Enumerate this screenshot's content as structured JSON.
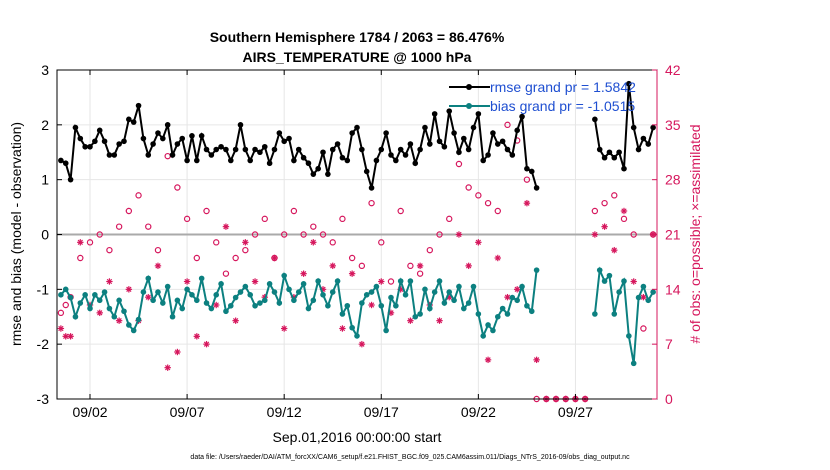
{
  "chart_data": {
    "type": "line",
    "title_line1": "Southern Hemisphere 1784 / 2063 = 86.476%",
    "title_line2": "AIRS_TEMPERATURE @ 1000 hPa",
    "xlabel": "Sep.01,2016 00:00:00 start",
    "ylabel_left": "rmse and bias (model - observation)",
    "ylabel_right": "# of obs: o=possible; ×=assimilated",
    "footnote": "data file: /Users/raeder/DAI/ATM_forcXX/CAM6_setup/f.e21.FHIST_BGC.f09_025.CAM6assim.011/Diags_NTrS_2016-09/obs_diag_output.nc",
    "xlim": [
      0.3,
      31.2
    ],
    "ylim_left": [
      -3,
      3
    ],
    "ylim_right": [
      0,
      42
    ],
    "x_tick_values": [
      2,
      7,
      12,
      17,
      22,
      27
    ],
    "x_tick_labels": [
      "09/02",
      "09/07",
      "09/12",
      "09/17",
      "09/22",
      "09/27"
    ],
    "y_left_ticks": [
      "-3",
      "-2",
      "-1",
      "0",
      "1",
      "2",
      "3"
    ],
    "y_right_ticks": [
      "0",
      "7",
      "14",
      "21",
      "28",
      "35",
      "42"
    ],
    "grid": true,
    "legend_position": "top-right",
    "colors": {
      "rmse": "#000000",
      "bias": "#0c8080",
      "obs": "#d6175d",
      "zero_line": "#aaaaaa",
      "legend_text": "#1f4fd1"
    },
    "series": [
      {
        "name": "rmse grand pr = 1.5842",
        "axis": "left",
        "color": "#000000",
        "x": [
          0.5,
          0.75,
          1.0,
          1.25,
          1.5,
          1.75,
          2.0,
          2.25,
          2.5,
          2.75,
          3.0,
          3.25,
          3.5,
          3.75,
          4.0,
          4.25,
          4.5,
          4.75,
          5.0,
          5.25,
          5.5,
          5.75,
          6.0,
          6.25,
          6.5,
          6.75,
          7.0,
          7.25,
          7.5,
          7.75,
          8.0,
          8.25,
          8.5,
          8.75,
          9.0,
          9.25,
          9.5,
          9.75,
          10.0,
          10.25,
          10.5,
          10.75,
          11.0,
          11.25,
          11.5,
          11.75,
          12.0,
          12.25,
          12.5,
          12.75,
          13.0,
          13.25,
          13.5,
          13.75,
          14.0,
          14.25,
          14.5,
          14.75,
          15.0,
          15.25,
          15.5,
          15.75,
          16.0,
          16.25,
          16.5,
          16.75,
          17.0,
          17.25,
          17.5,
          17.75,
          18.0,
          18.25,
          18.5,
          18.75,
          19.0,
          19.25,
          19.5,
          19.75,
          20.0,
          20.25,
          20.5,
          20.75,
          21.0,
          21.25,
          21.5,
          21.75,
          22.0,
          22.25,
          22.5,
          22.75,
          23.0,
          23.25,
          23.5,
          23.75,
          24.0,
          24.25,
          24.5,
          24.75,
          25.0,
          null,
          28.0,
          28.25,
          28.5,
          28.75,
          29.0,
          29.25,
          29.5,
          29.75,
          30.0,
          30.25,
          30.5,
          30.75,
          31.0
        ],
        "values": [
          1.35,
          1.3,
          1.0,
          1.95,
          1.75,
          1.6,
          1.6,
          1.7,
          1.9,
          1.7,
          1.45,
          1.45,
          1.65,
          1.7,
          2.1,
          2.05,
          2.35,
          1.75,
          1.45,
          1.65,
          1.85,
          1.75,
          2.0,
          1.45,
          1.65,
          1.75,
          1.35,
          1.8,
          1.35,
          1.8,
          1.55,
          1.45,
          1.55,
          1.6,
          1.55,
          1.35,
          1.55,
          2.0,
          1.55,
          1.35,
          1.55,
          1.5,
          1.6,
          1.3,
          1.55,
          1.85,
          1.7,
          1.75,
          1.35,
          1.55,
          1.4,
          1.3,
          1.1,
          1.2,
          1.5,
          1.1,
          1.55,
          1.65,
          1.4,
          1.35,
          1.85,
          1.95,
          1.55,
          1.15,
          0.85,
          1.35,
          1.55,
          1.85,
          1.45,
          1.35,
          1.55,
          1.45,
          1.65,
          1.3,
          1.55,
          1.95,
          1.65,
          2.2,
          1.7,
          1.6,
          2.25,
          1.85,
          1.5,
          1.75,
          1.55,
          1.95,
          2.2,
          1.35,
          1.45,
          1.85,
          1.65,
          1.7,
          1.55,
          1.45,
          1.9,
          2.15,
          1.2,
          1.15,
          0.85,
          null,
          2.1,
          1.55,
          1.4,
          1.5,
          1.4,
          1.5,
          1.2,
          2.75,
          1.95,
          1.55,
          1.75,
          1.65,
          1.95
        ]
      },
      {
        "name": "bias grand pr = -1.0515",
        "axis": "left",
        "color": "#0c8080",
        "x": [
          0.5,
          0.75,
          1.0,
          1.25,
          1.5,
          1.75,
          2.0,
          2.25,
          2.5,
          2.75,
          3.0,
          3.25,
          3.5,
          3.75,
          4.0,
          4.25,
          4.5,
          4.75,
          5.0,
          5.25,
          5.5,
          5.75,
          6.0,
          6.25,
          6.5,
          6.75,
          7.0,
          7.25,
          7.5,
          7.75,
          8.0,
          8.25,
          8.5,
          8.75,
          9.0,
          9.25,
          9.5,
          9.75,
          10.0,
          10.25,
          10.5,
          10.75,
          11.0,
          11.25,
          11.5,
          11.75,
          12.0,
          12.25,
          12.5,
          12.75,
          13.0,
          13.25,
          13.5,
          13.75,
          14.0,
          14.25,
          14.5,
          14.75,
          15.0,
          15.25,
          15.5,
          15.75,
          16.0,
          16.25,
          16.5,
          16.75,
          17.0,
          17.25,
          17.5,
          17.75,
          18.0,
          18.25,
          18.5,
          18.75,
          19.0,
          19.25,
          19.5,
          19.75,
          20.0,
          20.25,
          20.5,
          20.75,
          21.0,
          21.25,
          21.5,
          21.75,
          22.0,
          22.25,
          22.5,
          22.75,
          23.0,
          23.25,
          23.5,
          23.75,
          24.0,
          24.25,
          24.5,
          24.75,
          25.0,
          null,
          28.0,
          28.25,
          28.5,
          28.75,
          29.0,
          29.25,
          29.5,
          29.75,
          30.0,
          30.25,
          30.5,
          30.75,
          31.0
        ],
        "values": [
          -1.1,
          -1.0,
          -1.15,
          -1.5,
          -1.25,
          -1.1,
          -1.35,
          -1.1,
          -1.2,
          -1.05,
          -1.35,
          -1.5,
          -1.2,
          -1.4,
          -1.65,
          -1.75,
          -1.55,
          -1.05,
          -0.8,
          -1.2,
          -1.05,
          -1.25,
          -0.95,
          -1.5,
          -1.2,
          -1.35,
          -1.0,
          -1.1,
          -1.2,
          -0.8,
          -1.25,
          -1.35,
          -1.1,
          -0.9,
          -1.4,
          -1.3,
          -1.15,
          -1.05,
          -0.95,
          -1.1,
          -1.3,
          -1.25,
          -1.2,
          -0.9,
          -1.05,
          -1.25,
          -0.75,
          -1.0,
          -1.2,
          -1.05,
          -0.9,
          -1.35,
          -1.2,
          -0.85,
          -1.1,
          -1.3,
          -1.05,
          -0.85,
          -1.45,
          -1.3,
          -1.7,
          -1.85,
          -1.25,
          -1.1,
          -1.05,
          -0.95,
          -1.3,
          -1.75,
          -1.15,
          -1.3,
          -0.85,
          -1.1,
          -0.85,
          -1.5,
          -1.45,
          -1.0,
          -1.35,
          -1.05,
          -0.85,
          -1.25,
          -1.05,
          -1.2,
          -0.95,
          -1.35,
          -1.25,
          -0.95,
          -1.45,
          -1.85,
          -1.65,
          -1.75,
          -1.5,
          -1.35,
          -1.45,
          -1.15,
          -1.2,
          -0.95,
          -1.3,
          -1.4,
          -0.65,
          null,
          -1.45,
          -0.65,
          -0.85,
          -0.75,
          -1.45,
          -1.05,
          -0.85,
          -1.85,
          -2.35,
          -1.15,
          -0.95,
          -1.2,
          -1.05
        ]
      }
    ],
    "obs_possible": {
      "name": "o=possible",
      "axis": "right",
      "color": "#d6175d",
      "x": [
        0.5,
        0.75,
        1.0,
        1.5,
        2.0,
        2.5,
        3.0,
        3.5,
        4.0,
        4.5,
        5.0,
        5.5,
        6.0,
        6.5,
        7.0,
        7.5,
        8.0,
        8.5,
        9.0,
        9.5,
        10.0,
        10.5,
        11.0,
        11.5,
        12.0,
        12.5,
        13.0,
        13.5,
        14.0,
        14.5,
        15.0,
        15.5,
        16.0,
        16.5,
        17.0,
        17.5,
        18.0,
        18.5,
        19.0,
        19.5,
        20.0,
        20.5,
        21.0,
        21.5,
        22.0,
        22.5,
        23.0,
        23.5,
        24.0,
        24.5,
        25.0,
        25.5,
        26.0,
        26.5,
        27.0,
        27.5,
        28.0,
        28.5,
        29.0,
        29.5,
        30.0,
        30.5,
        31.0
      ],
      "values": [
        11,
        12,
        13,
        18,
        20,
        21,
        19,
        22,
        24,
        26,
        22,
        19,
        31,
        27,
        23,
        18,
        24,
        20,
        16,
        18,
        19,
        21,
        23,
        18,
        21,
        24,
        21,
        22,
        21,
        20,
        23,
        18,
        17,
        25,
        20,
        15,
        24,
        17,
        16,
        19,
        21,
        23,
        30,
        27,
        26,
        25,
        24,
        35,
        33,
        28,
        0,
        0,
        0,
        0,
        0,
        0,
        24,
        25,
        26,
        23,
        21,
        9,
        21
      ]
    },
    "obs_assimilated": {
      "name": "×=assimilated",
      "axis": "right",
      "color": "#d6175d",
      "x": [
        0.5,
        0.75,
        1.0,
        1.5,
        2.0,
        2.5,
        3.0,
        3.5,
        4.0,
        4.5,
        5.0,
        5.5,
        6.0,
        6.5,
        7.0,
        7.5,
        8.0,
        8.5,
        9.0,
        9.5,
        10.0,
        10.5,
        11.0,
        11.5,
        12.0,
        12.5,
        13.0,
        13.5,
        14.0,
        14.5,
        15.0,
        15.5,
        16.0,
        16.5,
        17.0,
        17.5,
        18.0,
        18.5,
        19.0,
        19.5,
        20.0,
        20.5,
        21.0,
        21.5,
        22.0,
        22.5,
        23.0,
        23.5,
        24.0,
        24.5,
        25.0,
        25.5,
        26.0,
        26.5,
        27.0,
        27.5,
        28.0,
        28.5,
        29.0,
        29.5,
        30.0,
        30.5,
        31.0
      ],
      "values": [
        9,
        8,
        8,
        20,
        12,
        11,
        15,
        10,
        14,
        10,
        13,
        17,
        4,
        6,
        15,
        8,
        7,
        12,
        22,
        10,
        20,
        15,
        13,
        18,
        9,
        13,
        16,
        20,
        14,
        17,
        9,
        16,
        7,
        12,
        15,
        11,
        14,
        10,
        17,
        12,
        10,
        13,
        21,
        17,
        20,
        5,
        18,
        13,
        14,
        25,
        5,
        0,
        0,
        0,
        0,
        0,
        21,
        22,
        19,
        24,
        15,
        13,
        21
      ]
    }
  }
}
